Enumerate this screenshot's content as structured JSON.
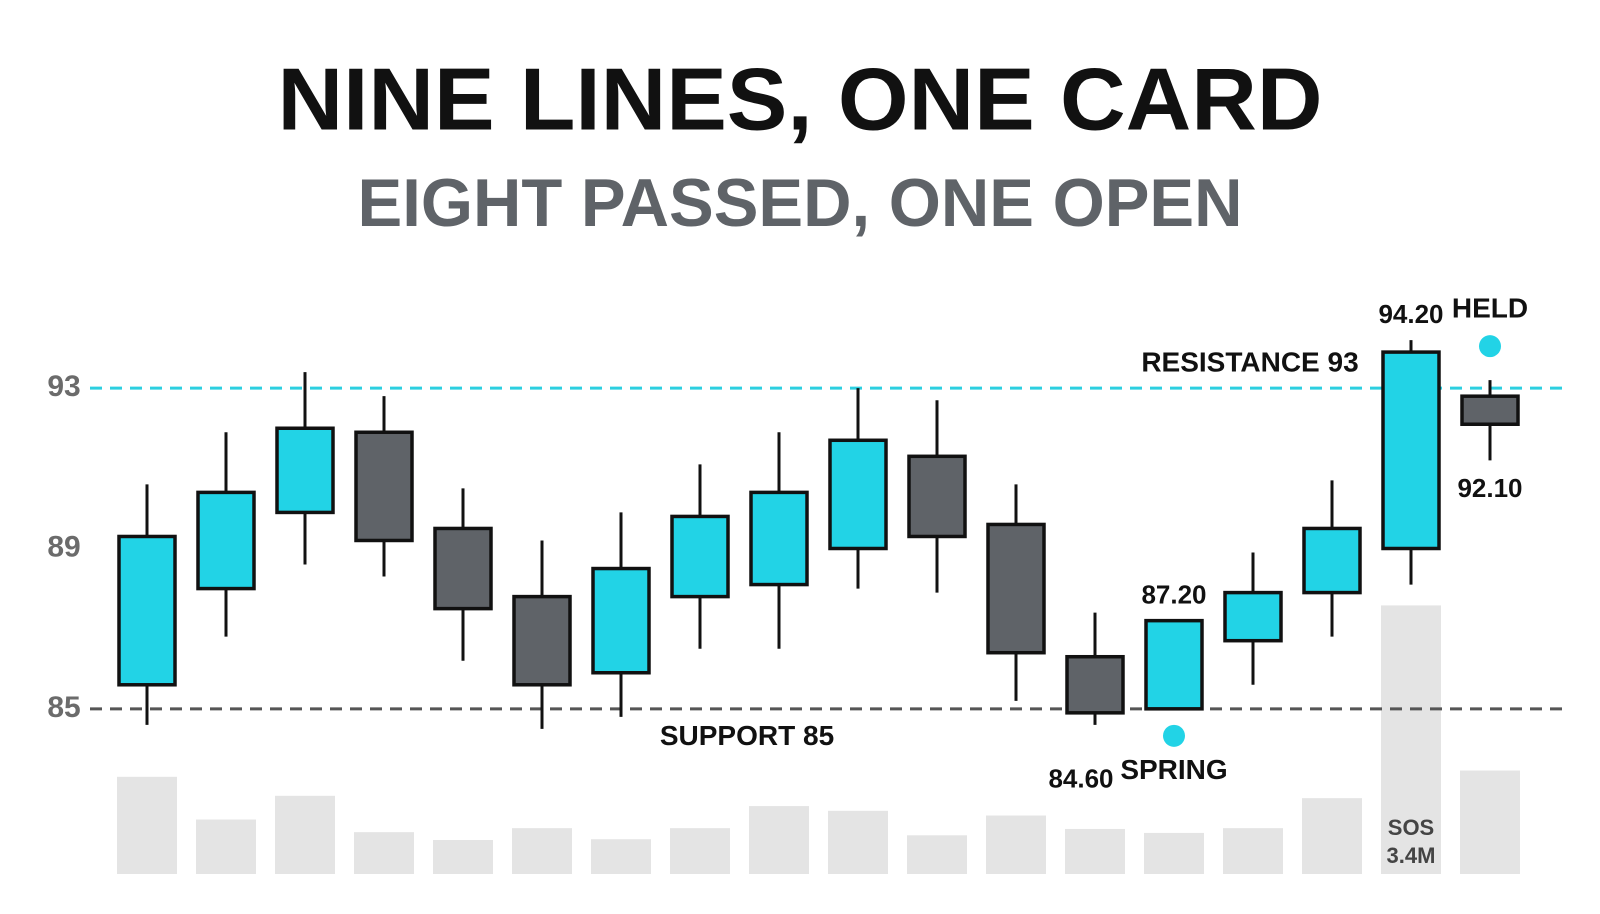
{
  "chart_data": {
    "type": "candlestick",
    "title": "NINE LINES, ONE CARD",
    "subtitle": "EIGHT PASSED, ONE OPEN",
    "open": [
      85.6,
      88.0,
      89.9,
      91.9,
      89.5,
      87.8,
      85.9,
      87.8,
      88.1,
      89.0,
      91.3,
      89.6,
      86.3,
      85.0,
      86.7,
      87.9,
      89.0,
      92.8
    ],
    "high": [
      90.6,
      91.9,
      93.4,
      92.8,
      90.5,
      89.2,
      89.9,
      91.1,
      91.9,
      93.0,
      92.7,
      90.6,
      87.4,
      87.2,
      88.9,
      90.7,
      94.2,
      93.2
    ],
    "low": [
      84.6,
      86.8,
      88.6,
      88.3,
      86.2,
      84.5,
      84.8,
      86.5,
      86.5,
      88.0,
      87.9,
      85.2,
      84.6,
      85.0,
      85.6,
      86.8,
      88.1,
      91.2
    ],
    "close": [
      89.3,
      90.4,
      92.0,
      89.2,
      87.5,
      85.6,
      88.5,
      89.8,
      90.4,
      91.7,
      89.3,
      86.4,
      84.9,
      87.2,
      87.9,
      89.5,
      93.9,
      92.1
    ],
    "high_labels": [
      null,
      null,
      null,
      null,
      null,
      null,
      null,
      null,
      null,
      null,
      null,
      null,
      null,
      "87.20",
      null,
      null,
      "94.20",
      null
    ],
    "low_labels": [
      null,
      null,
      null,
      null,
      null,
      null,
      null,
      null,
      null,
      null,
      null,
      null,
      "84.60",
      null,
      null,
      null,
      null,
      null
    ],
    "close_labels": [
      null,
      null,
      null,
      null,
      null,
      null,
      null,
      null,
      null,
      null,
      null,
      null,
      null,
      null,
      null,
      null,
      null,
      "92.10"
    ],
    "markers": [
      null,
      null,
      null,
      null,
      null,
      null,
      null,
      null,
      null,
      null,
      null,
      null,
      null,
      "SPRING",
      null,
      null,
      null,
      "HELD"
    ],
    "up_color": "#22d3e6",
    "down_color": "#5f6368",
    "marker_color": "#22d3e6",
    "ylim": [
      83,
      95
    ],
    "yticks": [
      85,
      89,
      93
    ],
    "hlines": [
      {
        "value": 93,
        "label": "RESISTANCE 93",
        "color": "#2ccfe0"
      },
      {
        "value": 85,
        "label": "SUPPORT 85",
        "color": "#555555"
      }
    ],
    "volume": {
      "values": [
        1.23,
        0.69,
        0.99,
        0.53,
        0.43,
        0.58,
        0.44,
        0.58,
        0.86,
        0.8,
        0.49,
        0.74,
        0.57,
        0.52,
        0.58,
        0.96,
        3.4,
        1.31
      ],
      "value_labels": [
        null,
        null,
        null,
        null,
        null,
        null,
        null,
        null,
        null,
        null,
        null,
        null,
        null,
        null,
        null,
        null,
        "3.4M",
        null
      ],
      "annotations": [
        null,
        null,
        null,
        null,
        null,
        null,
        null,
        null,
        null,
        null,
        null,
        null,
        null,
        null,
        null,
        null,
        "SOS",
        null
      ],
      "color": "#e4e4e4"
    }
  }
}
